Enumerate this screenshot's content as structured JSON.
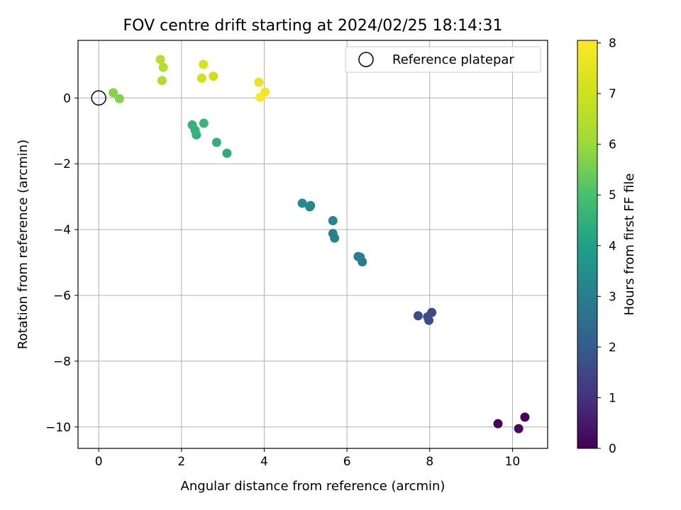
{
  "chart_data": {
    "type": "scatter",
    "title": "FOV centre drift starting at 2024/02/25 18:14:31",
    "xlabel": "Angular distance from reference (arcmin)",
    "ylabel": "Rotation from reference (arcmin)",
    "xlim": [
      -0.5,
      10.85
    ],
    "ylim": [
      -10.65,
      1.75
    ],
    "xticks": [
      0,
      2,
      4,
      6,
      8,
      10
    ],
    "yticks": [
      -10,
      -8,
      -6,
      -4,
      -2,
      0
    ],
    "grid": true,
    "legend": {
      "position": "top-right",
      "entries": [
        "Reference platepar"
      ]
    },
    "reference_point": {
      "x": 0,
      "y": 0,
      "label": "Reference platepar",
      "marker": "open-circle"
    },
    "colorbar": {
      "label": "Hours from first FF file",
      "colormap": "viridis",
      "range": [
        0,
        8.05
      ],
      "ticks": [
        0,
        1,
        2,
        3,
        4,
        5,
        6,
        7,
        8
      ]
    },
    "points": [
      {
        "x": 10.3,
        "y": -9.7,
        "hours": 0.05
      },
      {
        "x": 9.65,
        "y": -9.9,
        "hours": 0.1
      },
      {
        "x": 10.15,
        "y": -10.05,
        "hours": 0.2
      },
      {
        "x": 8.05,
        "y": -6.52,
        "hours": 1.55
      },
      {
        "x": 7.72,
        "y": -6.62,
        "hours": 1.6
      },
      {
        "x": 7.95,
        "y": -6.65,
        "hours": 1.65
      },
      {
        "x": 7.98,
        "y": -6.76,
        "hours": 1.7
      },
      {
        "x": 6.37,
        "y": -4.98,
        "hours": 2.85
      },
      {
        "x": 6.27,
        "y": -4.82,
        "hours": 2.9
      },
      {
        "x": 6.32,
        "y": -4.84,
        "hours": 2.95
      },
      {
        "x": 5.7,
        "y": -4.26,
        "hours": 3.1
      },
      {
        "x": 5.66,
        "y": -4.12,
        "hours": 3.15
      },
      {
        "x": 5.66,
        "y": -3.73,
        "hours": 3.2
      },
      {
        "x": 5.1,
        "y": -3.31,
        "hours": 3.3
      },
      {
        "x": 5.12,
        "y": -3.27,
        "hours": 3.35
      },
      {
        "x": 4.92,
        "y": -3.2,
        "hours": 3.4
      },
      {
        "x": 3.1,
        "y": -1.68,
        "hours": 4.35
      },
      {
        "x": 2.85,
        "y": -1.35,
        "hours": 4.45
      },
      {
        "x": 2.36,
        "y": -1.12,
        "hours": 4.5
      },
      {
        "x": 2.33,
        "y": -0.98,
        "hours": 4.55
      },
      {
        "x": 2.26,
        "y": -0.82,
        "hours": 4.6
      },
      {
        "x": 2.54,
        "y": -0.77,
        "hours": 4.65
      },
      {
        "x": 0.5,
        "y": -0.02,
        "hours": 5.7
      },
      {
        "x": 0.35,
        "y": 0.16,
        "hours": 5.75
      },
      {
        "x": 1.53,
        "y": 0.53,
        "hours": 6.4
      },
      {
        "x": 1.56,
        "y": 0.93,
        "hours": 6.5
      },
      {
        "x": 1.49,
        "y": 1.17,
        "hours": 6.55
      },
      {
        "x": 2.49,
        "y": 0.6,
        "hours": 7.0
      },
      {
        "x": 2.77,
        "y": 0.66,
        "hours": 7.05
      },
      {
        "x": 2.53,
        "y": 1.02,
        "hours": 7.15
      },
      {
        "x": 3.87,
        "y": 0.48,
        "hours": 7.6
      },
      {
        "x": 4.02,
        "y": 0.18,
        "hours": 7.8
      },
      {
        "x": 3.9,
        "y": 0.02,
        "hours": 8.0
      }
    ]
  }
}
